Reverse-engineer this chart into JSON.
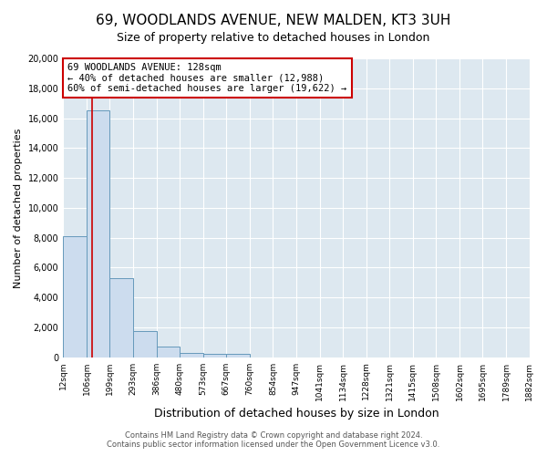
{
  "title": "69, WOODLANDS AVENUE, NEW MALDEN, KT3 3UH",
  "subtitle": "Size of property relative to detached houses in London",
  "xlabel": "Distribution of detached houses by size in London",
  "ylabel": "Number of detached properties",
  "bar_edges": [
    12,
    106,
    199,
    293,
    386,
    480,
    573,
    667,
    760,
    854,
    947,
    1041,
    1134,
    1228,
    1321,
    1415,
    1508,
    1602,
    1695,
    1789,
    1882
  ],
  "bar_heights": [
    8100,
    16500,
    5300,
    1750,
    700,
    300,
    200,
    200,
    0,
    0,
    0,
    0,
    0,
    0,
    0,
    0,
    0,
    0,
    0,
    0
  ],
  "bar_color": "#ccdcee",
  "bar_edge_color": "#6699bb",
  "property_size": 128,
  "property_line_color": "#cc0000",
  "annotation_title": "69 WOODLANDS AVENUE: 128sqm",
  "annotation_line1": "← 40% of detached houses are smaller (12,988)",
  "annotation_line2": "60% of semi-detached houses are larger (19,622) →",
  "annotation_box_facecolor": "#ffffff",
  "annotation_box_edgecolor": "#cc0000",
  "ylim": [
    0,
    20000
  ],
  "ytick_step": 2000,
  "tick_labels": [
    "12sqm",
    "106sqm",
    "199sqm",
    "293sqm",
    "386sqm",
    "480sqm",
    "573sqm",
    "667sqm",
    "760sqm",
    "854sqm",
    "947sqm",
    "1041sqm",
    "1134sqm",
    "1228sqm",
    "1321sqm",
    "1415sqm",
    "1508sqm",
    "1602sqm",
    "1695sqm",
    "1789sqm",
    "1882sqm"
  ],
  "footer_line1": "Contains HM Land Registry data © Crown copyright and database right 2024.",
  "footer_line2": "Contains public sector information licensed under the Open Government Licence v3.0.",
  "fig_facecolor": "#ffffff",
  "plot_facecolor": "#dde8f0",
  "grid_color": "#ffffff",
  "title_fontsize": 11,
  "subtitle_fontsize": 9,
  "xlabel_fontsize": 9,
  "ylabel_fontsize": 8,
  "footer_fontsize": 6,
  "tick_fontsize": 6.5,
  "annotation_fontsize": 7.5
}
